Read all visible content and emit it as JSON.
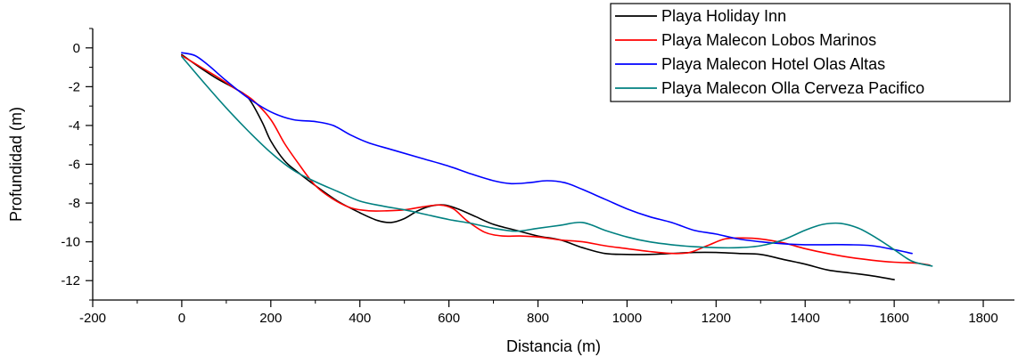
{
  "chart_data": {
    "type": "line",
    "title": "",
    "xlabel": "Distancia (m)",
    "ylabel": "Profundidad (m)",
    "xlim": [
      -200,
      1870
    ],
    "ylim": [
      -13,
      1
    ],
    "xticks": [
      -200,
      0,
      200,
      400,
      600,
      800,
      1000,
      1200,
      1400,
      1600,
      1800
    ],
    "yticks": [
      0,
      -2,
      -4,
      -6,
      -8,
      -10,
      -12
    ],
    "legend_position": "top-right",
    "grid": false,
    "series": [
      {
        "name": "Playa Holiday Inn",
        "color": "#000000",
        "x": [
          0,
          40,
          80,
          120,
          150,
          180,
          200,
          230,
          260,
          300,
          350,
          400,
          440,
          470,
          500,
          530,
          560,
          590,
          620,
          660,
          700,
          750,
          800,
          850,
          900,
          950,
          1000,
          1050,
          1100,
          1150,
          1200,
          1250,
          1300,
          1350,
          1400,
          1450,
          1500,
          1550,
          1600
        ],
        "y": [
          -0.35,
          -1.0,
          -1.6,
          -2.1,
          -2.6,
          -3.8,
          -4.8,
          -5.8,
          -6.4,
          -7.1,
          -7.9,
          -8.5,
          -8.9,
          -9.0,
          -8.8,
          -8.4,
          -8.15,
          -8.1,
          -8.3,
          -8.7,
          -9.1,
          -9.4,
          -9.7,
          -9.9,
          -10.3,
          -10.6,
          -10.65,
          -10.65,
          -10.6,
          -10.55,
          -10.55,
          -10.6,
          -10.65,
          -10.9,
          -11.15,
          -11.45,
          -11.6,
          -11.75,
          -11.95
        ]
      },
      {
        "name": "Playa Malecon Lobos Marinos",
        "color": "#ff0000",
        "x": [
          0,
          40,
          80,
          120,
          160,
          200,
          230,
          260,
          300,
          340,
          380,
          420,
          460,
          500,
          540,
          580,
          610,
          640,
          680,
          720,
          760,
          800,
          850,
          900,
          950,
          1000,
          1050,
          1100,
          1140,
          1180,
          1220,
          1260,
          1300,
          1350,
          1400,
          1450,
          1500,
          1550,
          1600,
          1650,
          1680
        ],
        "y": [
          -0.4,
          -0.95,
          -1.5,
          -2.1,
          -2.7,
          -3.7,
          -4.9,
          -5.9,
          -7.1,
          -7.8,
          -8.25,
          -8.4,
          -8.4,
          -8.35,
          -8.2,
          -8.1,
          -8.3,
          -8.9,
          -9.5,
          -9.7,
          -9.7,
          -9.75,
          -9.9,
          -10.0,
          -10.2,
          -10.35,
          -10.5,
          -10.6,
          -10.55,
          -10.2,
          -9.85,
          -9.8,
          -9.85,
          -10.05,
          -10.35,
          -10.6,
          -10.8,
          -10.95,
          -11.05,
          -11.1,
          -11.2
        ]
      },
      {
        "name": "Playa Malecon Hotel Olas Altas",
        "color": "#0000ff",
        "x": [
          0,
          30,
          60,
          100,
          150,
          200,
          250,
          300,
          340,
          380,
          420,
          480,
          540,
          600,
          650,
          700,
          740,
          780,
          820,
          860,
          900,
          950,
          1000,
          1050,
          1100,
          1150,
          1200,
          1250,
          1300,
          1350,
          1400,
          1450,
          1500,
          1550,
          1600,
          1640
        ],
        "y": [
          -0.25,
          -0.4,
          -0.9,
          -1.7,
          -2.6,
          -3.3,
          -3.7,
          -3.8,
          -4.0,
          -4.5,
          -4.9,
          -5.3,
          -5.7,
          -6.1,
          -6.5,
          -6.85,
          -7.0,
          -6.95,
          -6.85,
          -6.95,
          -7.3,
          -7.8,
          -8.3,
          -8.7,
          -9.0,
          -9.4,
          -9.6,
          -9.85,
          -10.0,
          -10.1,
          -10.15,
          -10.15,
          -10.15,
          -10.2,
          -10.4,
          -10.6
        ]
      },
      {
        "name": "Playa Malecon Olla Cerveza Pacifico",
        "color": "#008080",
        "x": [
          0,
          50,
          100,
          150,
          200,
          250,
          300,
          350,
          400,
          450,
          500,
          550,
          600,
          650,
          700,
          750,
          800,
          850,
          900,
          950,
          1000,
          1050,
          1100,
          1150,
          1200,
          1250,
          1300,
          1350,
          1400,
          1440,
          1480,
          1520,
          1560,
          1600,
          1640,
          1685
        ],
        "y": [
          -0.45,
          -1.8,
          -3.1,
          -4.3,
          -5.4,
          -6.3,
          -6.9,
          -7.4,
          -7.9,
          -8.15,
          -8.35,
          -8.6,
          -8.85,
          -9.05,
          -9.3,
          -9.45,
          -9.3,
          -9.15,
          -9.0,
          -9.4,
          -9.75,
          -10.0,
          -10.15,
          -10.25,
          -10.3,
          -10.3,
          -10.2,
          -9.9,
          -9.4,
          -9.1,
          -9.05,
          -9.3,
          -9.8,
          -10.4,
          -11.0,
          -11.25
        ]
      }
    ]
  }
}
